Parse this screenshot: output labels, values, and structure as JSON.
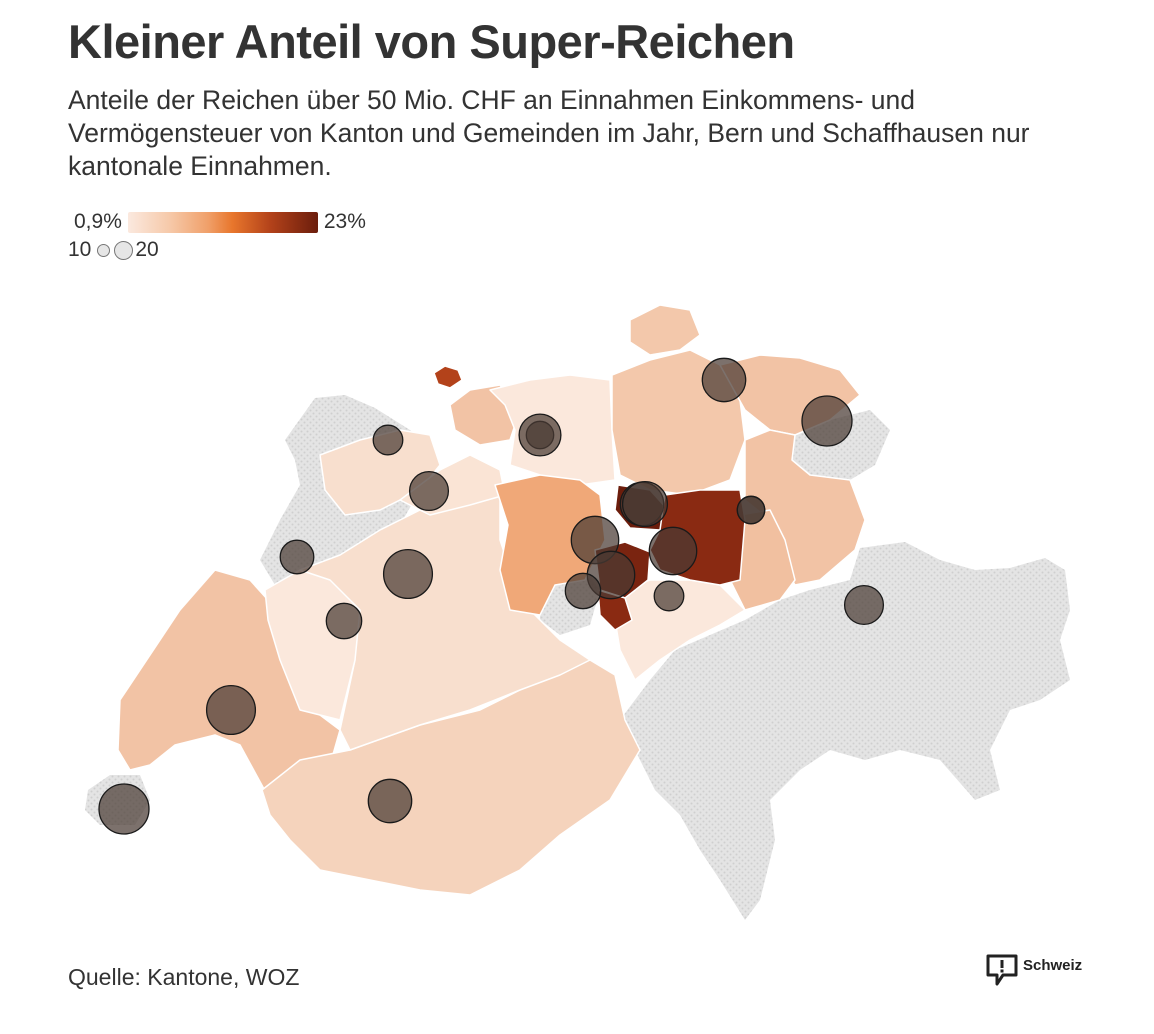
{
  "header": {
    "title": "Kleiner Anteil von Super-Reichen",
    "subtitle": "Anteile der Reichen über 50 Mio. CHF an Einnahmen Einkommens- und Vermögensteuer von Kanton und Gemeinden im Jahr, Bern und Schaffhausen nur kantonale Einnahmen."
  },
  "legend": {
    "color_min": "0,9%",
    "color_max": "23%",
    "size_min": "10",
    "size_max": "20",
    "colors": [
      "#fbe9df",
      "#f6c9a9",
      "#f0a06a",
      "#e8762c",
      "#b3421a",
      "#6b1d0c"
    ]
  },
  "footer": {
    "source": "Quelle: Kantone, WOZ",
    "brand": "Schweiz"
  },
  "map": {
    "no_data_color": "#dcdcdc",
    "bubble_color": "#4a3a33",
    "regions": [
      {
        "name": "west",
        "color": "#f2c3a5"
      },
      {
        "name": "valais",
        "color": "#f5d3bc"
      },
      {
        "name": "bern",
        "color": "#f8dfce"
      },
      {
        "name": "fribourg",
        "color": "#fbe8dc"
      },
      {
        "name": "jura",
        "color": "#f8dfce"
      },
      {
        "name": "solothurn",
        "color": "#fae4d5"
      },
      {
        "name": "basel-land",
        "color": "#f2c3a5"
      },
      {
        "name": "basel-stadt",
        "color": "#b3421a"
      },
      {
        "name": "aargau",
        "color": "#fbe8dc"
      },
      {
        "name": "luzern",
        "color": "#f0a878"
      },
      {
        "name": "zurich",
        "color": "#f3c8ab"
      },
      {
        "name": "schaffhausen",
        "color": "#f3c8ab"
      },
      {
        "name": "thurgau",
        "color": "#f2c3a5"
      },
      {
        "name": "st-gallen",
        "color": "#f2c3a5"
      },
      {
        "name": "glarus",
        "color": "#f1c0a0"
      },
      {
        "name": "uri",
        "color": "#fbe8dc"
      },
      {
        "name": "zug",
        "color": "#6b1d0c"
      },
      {
        "name": "schwyz",
        "color": "#8a2a12"
      },
      {
        "name": "nidwalden",
        "color": "#7a2410"
      },
      {
        "name": "obwalden",
        "color": "#8a2a12"
      }
    ],
    "bubbles": [
      {
        "canton": "Genève",
        "value": 20
      },
      {
        "canton": "Vaud",
        "value": 19
      },
      {
        "canton": "Valais",
        "value": 15
      },
      {
        "canton": "Fribourg",
        "value": 10
      },
      {
        "canton": "Neuchâtel",
        "value": 9
      },
      {
        "canton": "Bern",
        "value": 19
      },
      {
        "canton": "Jura",
        "value": 7
      },
      {
        "canton": "Solothurn",
        "value": 12
      },
      {
        "canton": "Basel-Land",
        "value": 6
      },
      {
        "canton": "Aargau",
        "value": 14
      },
      {
        "canton": "Zürich",
        "value": 20
      },
      {
        "canton": "Schaffhausen",
        "value": 15
      },
      {
        "canton": "Thurgau",
        "value": 15
      },
      {
        "canton": "St. Gallen",
        "value": 18
      },
      {
        "canton": "Appenzell",
        "value": 6
      },
      {
        "canton": "Luzern",
        "value": 18
      },
      {
        "canton": "Schwyz",
        "value": 18
      },
      {
        "canton": "Nidwalden",
        "value": 16
      },
      {
        "canton": "Obwalden",
        "value": 10
      },
      {
        "canton": "Uri",
        "value": 7
      },
      {
        "canton": "Graubünden",
        "value": 12
      },
      {
        "canton": "Glarus",
        "value": 6
      }
    ]
  }
}
